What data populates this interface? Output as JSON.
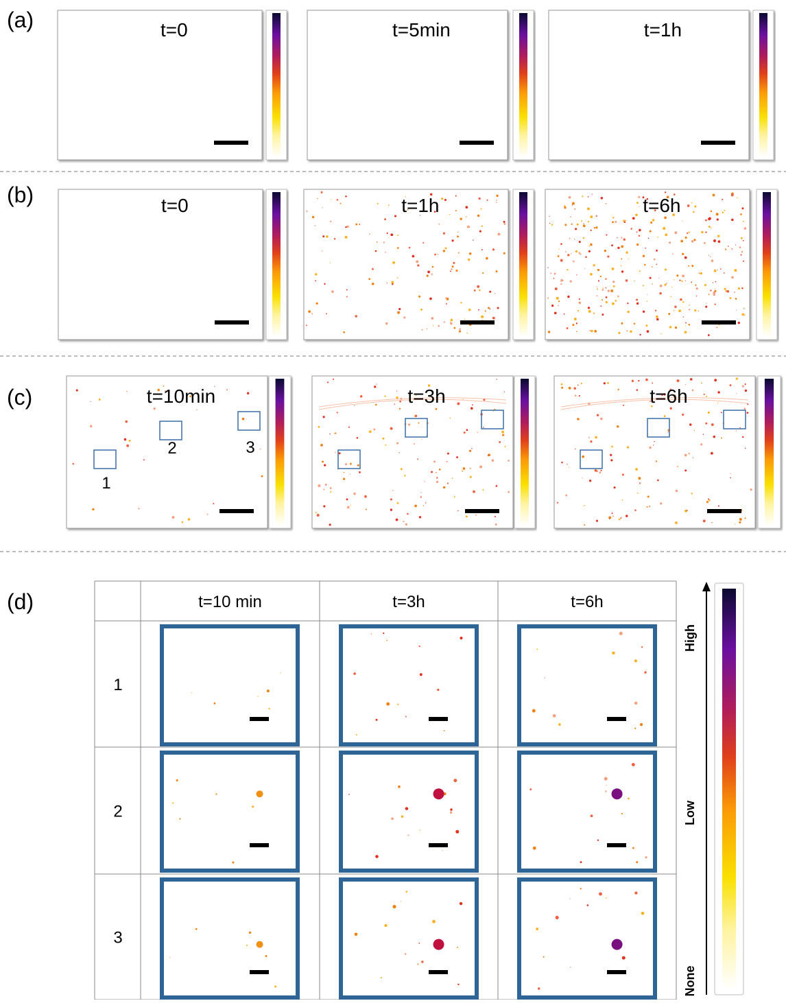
{
  "rows": [
    {
      "label": "(a)",
      "panels": [
        {
          "title": "t=0"
        },
        {
          "title": "t=5min"
        },
        {
          "title": "t=1h"
        }
      ]
    },
    {
      "label": "(b)",
      "panels": [
        {
          "title": "t=0"
        },
        {
          "title": "t=1h"
        },
        {
          "title": "t=6h"
        }
      ]
    },
    {
      "label": "(c)",
      "panels": [
        {
          "title": "t=10min"
        },
        {
          "title": "t=3h"
        },
        {
          "title": "t=6h"
        }
      ],
      "regions": [
        "1",
        "2",
        "3"
      ]
    }
  ],
  "table": {
    "label": "(d)",
    "columns": [
      "t=10 min",
      "t=3h",
      "t=6h"
    ],
    "rows": [
      "1",
      "2",
      "3"
    ]
  },
  "colorbar": {
    "top": "High",
    "middle": "Low",
    "bottom": "None"
  }
}
